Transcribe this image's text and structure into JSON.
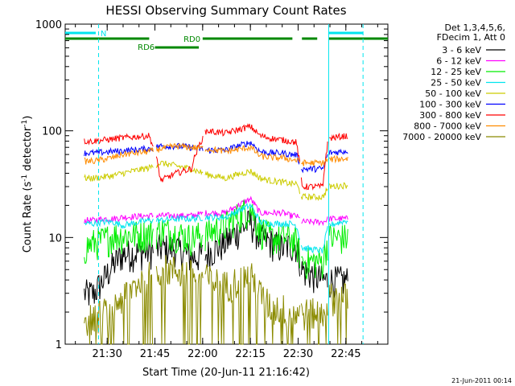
{
  "chart_data": {
    "type": "line",
    "title": "HESSI Observing Summary Count Rates",
    "xlabel": "Start Time (20-Jun-11 21:16:42)",
    "ylabel_main": "Count Rate (s",
    "ylabel_sup1": "-1",
    "ylabel_mid": " detector",
    "ylabel_sup2": "-1",
    "ylabel_end": ")",
    "y_scale": "log",
    "ylim": [
      1,
      1000
    ],
    "xlim_minutes": [
      21.28,
      22.97
    ],
    "x_tick_labels": [
      "21:30",
      "21:45",
      "22:00",
      "22:15",
      "22:30",
      "22:45"
    ],
    "x_tick_hours": [
      21.5,
      21.75,
      22.0,
      22.25,
      22.5,
      22.75
    ],
    "y_tick_labels": [
      "1",
      "10",
      "100",
      "1000"
    ],
    "y_tick_values": [
      1,
      10,
      100,
      1000
    ],
    "legend_header": [
      "Det 1,3,4,5,6,",
      "FDecim 1, Att 0"
    ],
    "legend_placement": "right",
    "series": [
      {
        "name": "3 - 6 keV",
        "color": "#000000",
        "base": [
          3,
          3,
          4,
          5.5,
          7,
          7.5,
          8,
          8,
          6.5,
          7,
          9,
          14,
          10,
          9,
          8,
          8.5,
          8.5,
          5,
          4,
          4,
          4
        ]
      },
      {
        "name": "6 - 12 keV",
        "color": "#ff00ff",
        "base": [
          14.5,
          14.5,
          15,
          15,
          15.5,
          16,
          16,
          16,
          16,
          17,
          17,
          23,
          17,
          17,
          17,
          16,
          16,
          14,
          14,
          15,
          15
        ]
      },
      {
        "name": "12 - 25 keV",
        "color": "#00ee00",
        "base": [
          8,
          9,
          9.5,
          10.5,
          10.5,
          11,
          12,
          11,
          10,
          11,
          13,
          19,
          12,
          10,
          10,
          10,
          9,
          6,
          6,
          10,
          10
        ]
      },
      {
        "name": "25 - 50 keV",
        "color": "#00e5ee",
        "base": [
          13.5,
          13.5,
          14,
          14,
          13,
          14.5,
          14.5,
          15,
          15,
          15.5,
          15.5,
          20,
          14,
          13.5,
          13.5,
          13.5,
          13,
          8,
          7.5,
          13,
          14.5
        ]
      },
      {
        "name": "50 - 100 keV",
        "color": "#cccc00",
        "base": [
          36,
          36,
          37,
          38,
          40,
          45,
          50,
          47,
          44,
          39,
          36,
          42,
          36,
          34,
          33,
          32,
          32,
          24,
          24,
          30,
          31
        ]
      },
      {
        "name": "100 - 300 keV",
        "color": "#0000ff",
        "base": [
          62,
          62,
          63,
          64,
          65,
          68,
          72,
          72,
          70,
          66,
          66,
          78,
          64,
          62,
          62,
          60,
          60,
          44,
          44,
          62,
          65
        ]
      },
      {
        "name": "300 - 800 keV",
        "color": "#ff0000",
        "base": [
          80,
          80,
          82,
          84,
          86,
          90,
          34,
          40,
          44,
          100,
          95,
          110,
          90,
          85,
          82,
          80,
          78,
          30,
          30,
          85,
          90
        ]
      },
      {
        "name": "800 - 7000 keV",
        "color": "#ff8c00",
        "base": [
          52,
          52,
          54,
          56,
          60,
          64,
          68,
          72,
          70,
          68,
          64,
          70,
          58,
          56,
          56,
          54,
          53,
          50,
          50,
          54,
          55
        ]
      },
      {
        "name": "7000 - 20000 keV",
        "color": "#8b8b00",
        "base": [
          1.8,
          1.8,
          2.0,
          2.2,
          2.8,
          4.5,
          5.2,
          5.0,
          4.6,
          4.2,
          3.6,
          4.5,
          3.0,
          2.2,
          2.2,
          2.0,
          2.0,
          2.0,
          2.0,
          2.8,
          2.8
        ]
      }
    ],
    "series_x_hours": [
      21.38,
      21.43,
      21.48,
      21.53,
      21.58,
      21.72,
      21.78,
      21.86,
      21.94,
      22.02,
      22.12,
      22.25,
      22.3,
      22.36,
      22.42,
      22.46,
      22.49,
      22.52,
      22.63,
      22.66,
      22.76
    ],
    "gaps_hours": [
      [
        21.745,
        21.755
      ],
      [
        22.005,
        22.012
      ],
      [
        22.51,
        22.515
      ],
      [
        22.655,
        22.662
      ]
    ],
    "annotations": {
      "rd0_label": "RD0",
      "rd6_label": "RD6",
      "n_label": "N",
      "footer_date": "21-Jun-2011 00:14"
    },
    "rd0_segments": [
      [
        21.28,
        21.72
      ],
      [
        22.0,
        22.47
      ],
      [
        22.52,
        22.6
      ],
      [
        22.66,
        22.97
      ]
    ],
    "rd6_segments": [
      [
        21.75,
        21.98
      ]
    ],
    "n_segments": [
      [
        21.28,
        21.44
      ],
      [
        22.66,
        22.84
      ]
    ],
    "cyan_vlines_solid": [
      22.66
    ],
    "cyan_vlines_dashed": [
      21.455,
      22.84
    ]
  },
  "colors": {
    "axis": "#000000",
    "rd": "#008800",
    "n_bar": "#00e5ee"
  }
}
